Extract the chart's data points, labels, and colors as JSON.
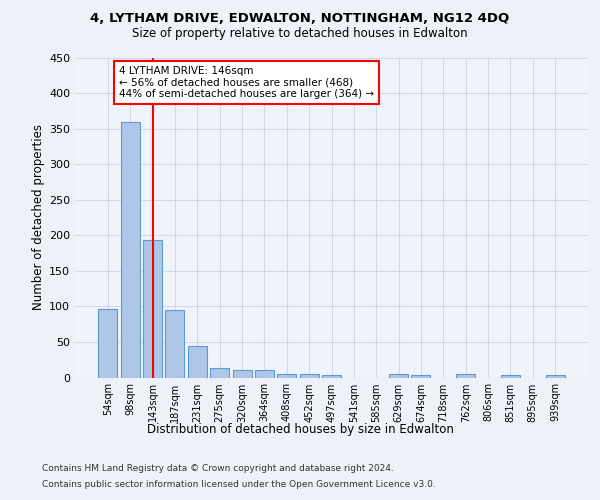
{
  "title1": "4, LYTHAM DRIVE, EDWALTON, NOTTINGHAM, NG12 4DQ",
  "title2": "Size of property relative to detached houses in Edwalton",
  "xlabel": "Distribution of detached houses by size in Edwalton",
  "ylabel": "Number of detached properties",
  "footer1": "Contains HM Land Registry data © Crown copyright and database right 2024.",
  "footer2": "Contains public sector information licensed under the Open Government Licence v3.0.",
  "categories": [
    "54sqm",
    "98sqm",
    "143sqm",
    "187sqm",
    "231sqm",
    "275sqm",
    "320sqm",
    "364sqm",
    "408sqm",
    "452sqm",
    "497sqm",
    "541sqm",
    "585sqm",
    "629sqm",
    "674sqm",
    "718sqm",
    "762sqm",
    "806sqm",
    "851sqm",
    "895sqm",
    "939sqm"
  ],
  "values": [
    97,
    360,
    193,
    95,
    45,
    14,
    10,
    10,
    5,
    5,
    4,
    0,
    0,
    5,
    4,
    0,
    5,
    0,
    4,
    0,
    4
  ],
  "bar_color": "#aec6e8",
  "bar_edge_color": "#5b9bd5",
  "red_line_index": 2,
  "annotation_text": "4 LYTHAM DRIVE: 146sqm\n← 56% of detached houses are smaller (468)\n44% of semi-detached houses are larger (364) →",
  "annotation_box_color": "white",
  "annotation_box_edge_color": "red",
  "ylim": [
    0,
    450
  ],
  "yticks": [
    0,
    50,
    100,
    150,
    200,
    250,
    300,
    350,
    400,
    450
  ],
  "grid_color": "#d0d8e8",
  "background_color": "#eef2f8",
  "plot_bg_color": "#f0f4fa"
}
